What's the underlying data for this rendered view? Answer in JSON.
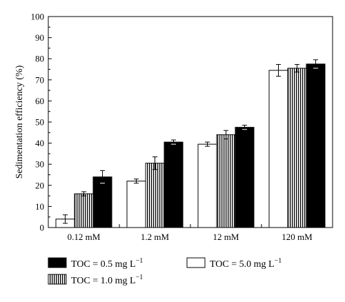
{
  "chart_data": {
    "type": "bar",
    "ylabel": "Sedimentation efficiency (%)",
    "xlabel": "",
    "ylim": [
      0,
      100
    ],
    "yticks": [
      0,
      10,
      20,
      30,
      40,
      50,
      60,
      70,
      80,
      90,
      100
    ],
    "categories": [
      "0.12 mM",
      "1.2 mM",
      "12 mM",
      "120 mM"
    ],
    "series": [
      {
        "name_parts": [
          "TOC = 5.0 mg L",
          "−1"
        ],
        "fill": "white",
        "values": [
          4,
          22,
          39.5,
          74.5
        ],
        "errors": [
          2,
          1,
          1,
          2.8
        ]
      },
      {
        "name_parts": [
          "TOC = 1.0 mg L",
          "−1"
        ],
        "fill": "hatched",
        "values": [
          16,
          30.5,
          44,
          75.5
        ],
        "errors": [
          1,
          3,
          2,
          1.8
        ]
      },
      {
        "name_parts": [
          "TOC = 0.5 mg L",
          "−1"
        ],
        "fill": "black",
        "values": [
          24,
          40.5,
          47.5,
          77.5
        ],
        "errors": [
          3,
          1,
          1,
          2
        ]
      }
    ],
    "legend_order": [
      2,
      1,
      0
    ],
    "legend_placement": "bottom",
    "grid": false
  }
}
